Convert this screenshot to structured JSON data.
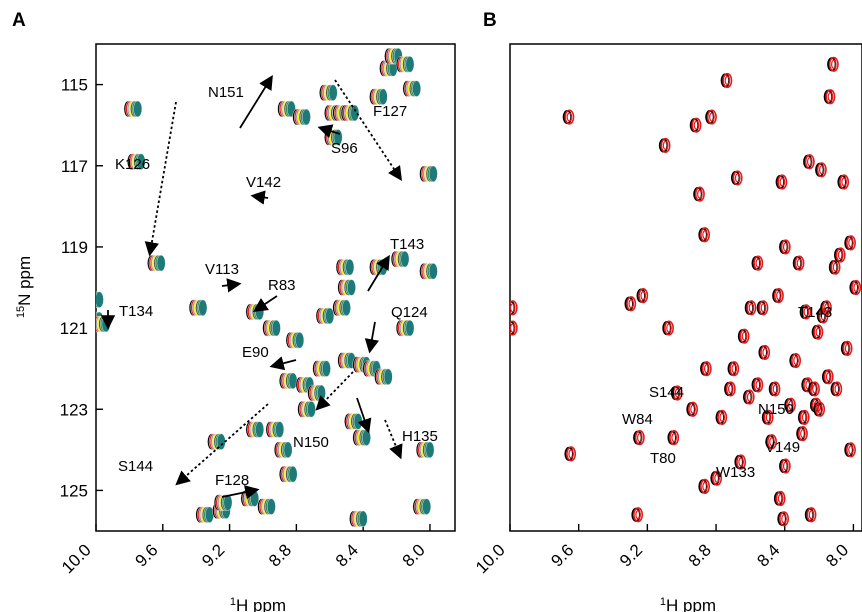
{
  "chart_data": [
    {
      "panel": "A",
      "type": "scatter",
      "title": "",
      "xlabel": "1H ppm",
      "ylabel": "15N ppm",
      "xlim": [
        10.0,
        7.85
      ],
      "ylim": [
        126.0,
        114.0
      ],
      "x_ticks": [
        "10.0",
        "9.6",
        "9.2",
        "8.8",
        "8.4",
        "8.0"
      ],
      "y_ticks": [
        "115",
        "117",
        "119",
        "121",
        "123",
        "125"
      ],
      "series_colors": [
        "#000000",
        "#e41a1c",
        "#999999",
        "#f5f500",
        "#555555",
        "#2e8b57",
        "#1e7a78"
      ],
      "peaks": [
        [
          9.98,
          120.3
        ],
        [
          9.98,
          120.8
        ],
        [
          9.94,
          120.9
        ],
        [
          9.75,
          115.6
        ],
        [
          9.73,
          116.9
        ],
        [
          9.61,
          119.4
        ],
        [
          9.36,
          120.5
        ],
        [
          9.32,
          125.6
        ],
        [
          9.25,
          123.8
        ],
        [
          9.22,
          125.5
        ],
        [
          9.21,
          125.3
        ],
        [
          9.05,
          125.2
        ],
        [
          9.02,
          120.6
        ],
        [
          9.02,
          123.5
        ],
        [
          8.95,
          125.4
        ],
        [
          8.92,
          121.0
        ],
        [
          8.9,
          123.5
        ],
        [
          8.85,
          124.0
        ],
        [
          8.83,
          115.6
        ],
        [
          8.82,
          122.3
        ],
        [
          8.82,
          124.6
        ],
        [
          8.78,
          121.3
        ],
        [
          8.74,
          115.8
        ],
        [
          8.72,
          122.4
        ],
        [
          8.71,
          123.0
        ],
        [
          8.65,
          122.6
        ],
        [
          8.62,
          122.0
        ],
        [
          8.6,
          120.7
        ],
        [
          8.58,
          115.2
        ],
        [
          8.55,
          115.7
        ],
        [
          8.55,
          116.3
        ],
        [
          8.5,
          115.7
        ],
        [
          8.5,
          120.5
        ],
        [
          8.48,
          119.5
        ],
        [
          8.47,
          121.8
        ],
        [
          8.47,
          120.0
        ],
        [
          8.45,
          115.7
        ],
        [
          8.43,
          123.3
        ],
        [
          8.4,
          125.7
        ],
        [
          8.38,
          123.7
        ],
        [
          8.38,
          121.9
        ],
        [
          8.32,
          122.0
        ],
        [
          8.28,
          115.3
        ],
        [
          8.28,
          119.5
        ],
        [
          8.25,
          122.2
        ],
        [
          8.22,
          114.6
        ],
        [
          8.19,
          114.3
        ],
        [
          8.15,
          119.3
        ],
        [
          8.12,
          114.5
        ],
        [
          8.12,
          121.0
        ],
        [
          8.08,
          115.1
        ],
        [
          8.02,
          125.4
        ],
        [
          8.0,
          124.0
        ],
        [
          7.98,
          117.2
        ],
        [
          7.98,
          119.6
        ]
      ],
      "labels": [
        {
          "text": "N151",
          "peak": [
            8.83,
            115.6
          ]
        },
        {
          "text": "F127",
          "peak": [
            8.58,
            114.9
          ]
        },
        {
          "text": "K126",
          "peak": [
            9.74,
            115.6
          ]
        },
        {
          "text": "S96",
          "peak": [
            8.52,
            115.8
          ]
        },
        {
          "text": "V142",
          "peak": [
            8.96,
            117.9
          ]
        },
        {
          "text": "T143",
          "peak": [
            8.3,
            119.3
          ]
        },
        {
          "text": "V113",
          "peak": [
            9.13,
            120.2
          ]
        },
        {
          "text": "R83",
          "peak": [
            8.92,
            120.9
          ]
        },
        {
          "text": "T134",
          "peak": [
            9.94,
            120.9
          ]
        },
        {
          "text": "Q124",
          "peak": [
            8.31,
            121.4
          ]
        },
        {
          "text": "E90",
          "peak": [
            8.9,
            122.2
          ]
        },
        {
          "text": "N150",
          "peak": [
            8.39,
            122.4
          ]
        },
        {
          "text": "H135",
          "peak": [
            8.3,
            123.3
          ]
        },
        {
          "text": "S144",
          "peak": [
            9.04,
            123.3
          ]
        },
        {
          "text": "F128",
          "peak": [
            8.84,
            124.8
          ]
        }
      ]
    },
    {
      "panel": "B",
      "type": "scatter",
      "title": "",
      "xlabel": "1H ppm",
      "ylabel": "",
      "xlim": [
        10.0,
        7.95
      ],
      "ylim": [
        126.0,
        114.0
      ],
      "x_ticks": [
        "10.0",
        "9.6",
        "9.2",
        "8.8",
        "8.4",
        "8.0"
      ],
      "y_ticks": [],
      "series_colors": [
        "#000000",
        "#e41a1c"
      ],
      "peaks": [
        [
          9.99,
          120.5
        ],
        [
          9.99,
          121.0
        ],
        [
          9.66,
          115.8
        ],
        [
          9.65,
          124.1
        ],
        [
          9.3,
          120.4
        ],
        [
          9.26,
          125.6
        ],
        [
          9.25,
          123.7
        ],
        [
          9.23,
          120.2
        ],
        [
          9.1,
          116.5
        ],
        [
          9.08,
          121.0
        ],
        [
          9.05,
          123.7
        ],
        [
          9.03,
          122.6
        ],
        [
          8.94,
          123.0
        ],
        [
          8.92,
          116.0
        ],
        [
          8.9,
          117.7
        ],
        [
          8.87,
          118.7
        ],
        [
          8.87,
          124.9
        ],
        [
          8.86,
          122.0
        ],
        [
          8.83,
          115.8
        ],
        [
          8.8,
          124.7
        ],
        [
          8.77,
          123.2
        ],
        [
          8.74,
          114.9
        ],
        [
          8.72,
          122.5
        ],
        [
          8.7,
          122.0
        ],
        [
          8.68,
          117.3
        ],
        [
          8.66,
          124.3
        ],
        [
          8.64,
          121.2
        ],
        [
          8.61,
          122.7
        ],
        [
          8.6,
          120.5
        ],
        [
          8.56,
          119.4
        ],
        [
          8.56,
          122.4
        ],
        [
          8.53,
          120.5
        ],
        [
          8.52,
          121.6
        ],
        [
          8.5,
          123.2
        ],
        [
          8.48,
          123.8
        ],
        [
          8.46,
          122.5
        ],
        [
          8.44,
          120.2
        ],
        [
          8.43,
          125.2
        ],
        [
          8.42,
          117.4
        ],
        [
          8.41,
          125.7
        ],
        [
          8.4,
          119.0
        ],
        [
          8.4,
          124.4
        ],
        [
          8.37,
          122.9
        ],
        [
          8.34,
          121.8
        ],
        [
          8.32,
          119.4
        ],
        [
          8.3,
          123.6
        ],
        [
          8.29,
          123.2
        ],
        [
          8.28,
          120.6
        ],
        [
          8.27,
          122.4
        ],
        [
          8.26,
          116.9
        ],
        [
          8.25,
          125.6
        ],
        [
          8.23,
          122.5
        ],
        [
          8.22,
          122.9
        ],
        [
          8.21,
          121.1
        ],
        [
          8.2,
          123.0
        ],
        [
          8.19,
          117.1
        ],
        [
          8.18,
          120.7
        ],
        [
          8.16,
          120.5
        ],
        [
          8.15,
          122.2
        ],
        [
          8.14,
          115.3
        ],
        [
          8.12,
          114.5
        ],
        [
          8.11,
          119.5
        ],
        [
          8.1,
          122.5
        ],
        [
          8.08,
          119.2
        ],
        [
          8.06,
          117.4
        ],
        [
          8.04,
          121.5
        ],
        [
          8.02,
          118.9
        ],
        [
          8.02,
          124.0
        ],
        [
          7.99,
          120.0
        ]
      ],
      "labels": [
        {
          "text": "T143",
          "peak": [
            8.3,
            120.6
          ]
        },
        {
          "text": "S144",
          "peak": [
            9.05,
            123.1
          ]
        },
        {
          "text": "W84",
          "peak": [
            9.26,
            123.6
          ]
        },
        {
          "text": "T80",
          "peak": [
            9.22,
            123.9
          ]
        },
        {
          "text": "N150",
          "peak": [
            8.35,
            123.2
          ]
        },
        {
          "text": "V149",
          "peak": [
            8.34,
            124.0
          ]
        },
        {
          "text": "W133",
          "peak": [
            8.78,
            124.7
          ]
        }
      ]
    }
  ]
}
